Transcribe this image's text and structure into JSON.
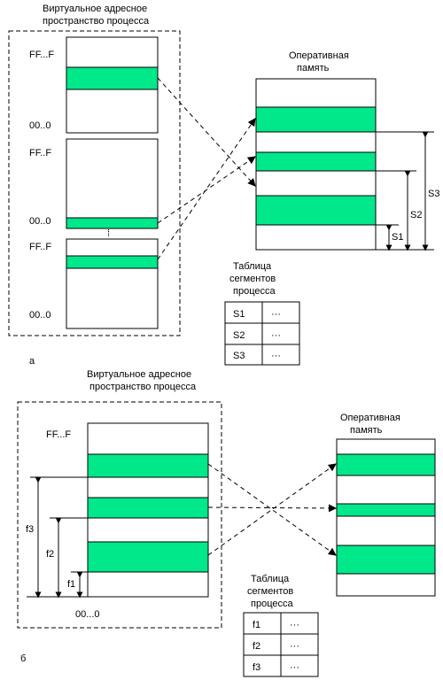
{
  "part_a": {
    "virtual_title_1": "Виртуальное адресное",
    "virtual_title_2": "пространство процесса",
    "ram_title_1": "Оперативная",
    "ram_title_2": "память",
    "seg1_top": "FF...F",
    "seg1_bottom": "00..0",
    "seg2_top": "FF..F",
    "seg2_bottom": "00..0",
    "seg3_top": "FF..F",
    "seg3_bottom": "00..0",
    "s1": "S1",
    "s2": "S2",
    "s3": "S3",
    "table_title_1": "Таблица",
    "table_title_2": "сегментов",
    "table_title_3": "процесса",
    "table_rows": [
      {
        "key": "S1",
        "val": "···"
      },
      {
        "key": "S2",
        "val": "···"
      },
      {
        "key": "S3",
        "val": "···"
      }
    ],
    "caption": "а"
  },
  "part_b": {
    "virtual_title_1": "Виртуальное адресное",
    "virtual_title_2": "пространство процесса",
    "ram_title_1": "Оперативная",
    "ram_title_2": "память",
    "top_label": "FF...F",
    "bottom_label": "00...0",
    "f1": "f1",
    "f2": "f2",
    "f3": "f3",
    "table_title_1": "Таблица",
    "table_title_2": "сегментов",
    "table_title_3": "процесса",
    "table_rows": [
      {
        "key": "f1",
        "val": "···"
      },
      {
        "key": "f2",
        "val": "···"
      },
      {
        "key": "f3",
        "val": "···"
      }
    ],
    "caption": "б"
  },
  "colors": {
    "segment": "#00e88a"
  }
}
